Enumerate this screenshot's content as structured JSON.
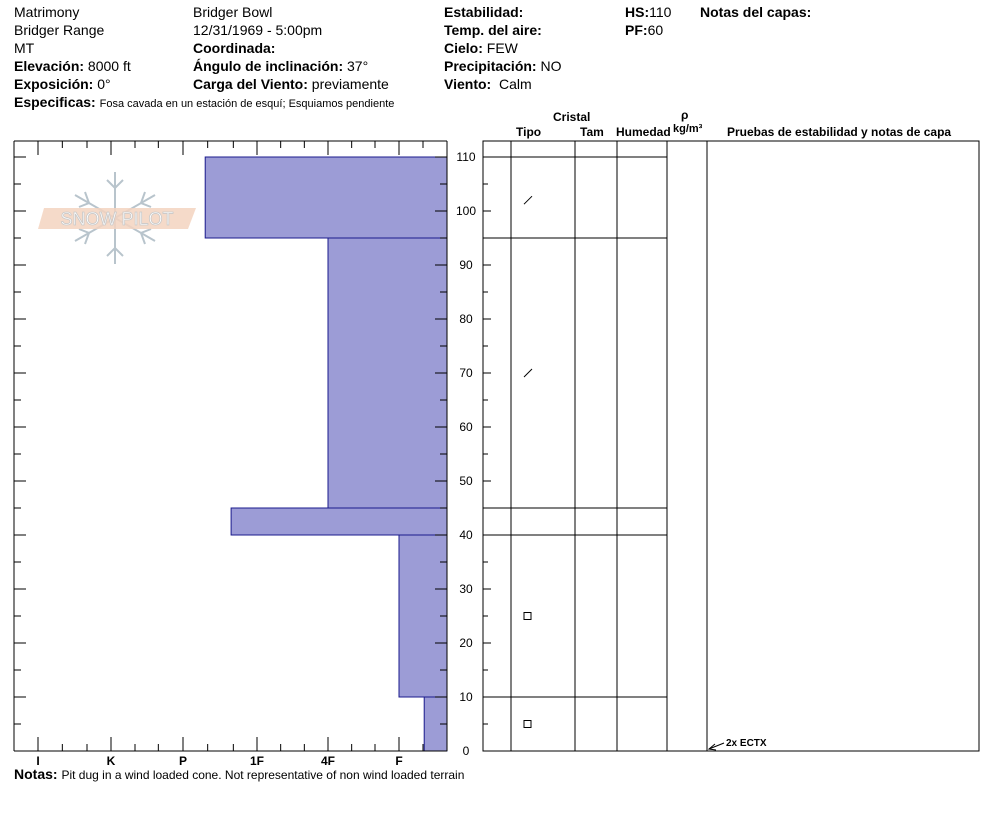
{
  "header": {
    "col1": {
      "site": "Matrimony",
      "range": "Bridger Range",
      "state": "MT",
      "elevation_label": "Elevación:",
      "elevation_value": "8000 ft",
      "aspect_label": "Exposición:",
      "aspect_value": "0°"
    },
    "col2": {
      "area": "Bridger Bowl",
      "datetime": "12/31/1969 - 5:00pm",
      "coord_label": "Coordinada:",
      "slope_label": "Ángulo de inclinación:",
      "slope_value": "37°",
      "wind_load_label": "Carga del Viento:",
      "wind_load_value": "previamente"
    },
    "col3": {
      "stability_label": "Estabilidad:",
      "air_temp_label": "Temp. del aire:",
      "sky_label": "Cielo:",
      "sky_value": "FEW",
      "precip_label": "Precipitación:",
      "precip_value": "NO",
      "wind_label": "Viento:",
      "wind_value": "Calm"
    },
    "col4": {
      "hs_label": "HS:",
      "hs_value": "110",
      "pf_label": "PF:",
      "pf_value": "60"
    },
    "layer_notes_label": "Notas del capas:",
    "specifics_label": "Especificas:",
    "specifics_value": "Fosa cavada en un estación de esquí; Esquiamos pendiente"
  },
  "table_headers": {
    "crystal": "Cristal",
    "type": "Tipo",
    "size": "Tam",
    "moisture": "Humedad",
    "rho": "ρ",
    "density_unit": "kg/m³",
    "tests": "Pruebas de estabilidad y notas de capa"
  },
  "watermark": "SNOW PILOT",
  "notes_label": "Notas:",
  "notes_value": "Pit dug in a wind loaded cone. Not representative of non wind loaded terrain",
  "chart_data": {
    "type": "bar",
    "title": "",
    "xlabel": "",
    "ylabel": "",
    "hardness_scale": [
      "I",
      "K",
      "P",
      "1F",
      "4F",
      "F"
    ],
    "ylim": [
      0,
      110
    ],
    "y_ticks": [
      "0",
      "10",
      "20",
      "30",
      "40",
      "50",
      "60",
      "70",
      "80",
      "90",
      "100",
      "110"
    ],
    "layers": [
      {
        "top": 110,
        "bottom": 95,
        "hardness_index": 2.3,
        "hardness": "P"
      },
      {
        "top": 95,
        "bottom": 45,
        "hardness_index": 4.0,
        "hardness": "4F"
      },
      {
        "top": 45,
        "bottom": 40,
        "hardness_index": 2.65,
        "hardness": "P+"
      },
      {
        "top": 40,
        "bottom": 10,
        "hardness_index": 5.0,
        "hardness": "F"
      },
      {
        "top": 10,
        "bottom": 0,
        "hardness_index": 5.35,
        "hardness": "F-"
      }
    ],
    "grain_symbols": [
      {
        "depth": 102,
        "symbol": "/"
      },
      {
        "depth": 70,
        "symbol": "/"
      },
      {
        "depth": 25,
        "symbol": "□"
      },
      {
        "depth": 5,
        "symbol": "□"
      }
    ],
    "stability_tests": [
      {
        "depth": 0,
        "label": "2x ECTX"
      }
    ],
    "bar_color": "#9c9cd6"
  }
}
